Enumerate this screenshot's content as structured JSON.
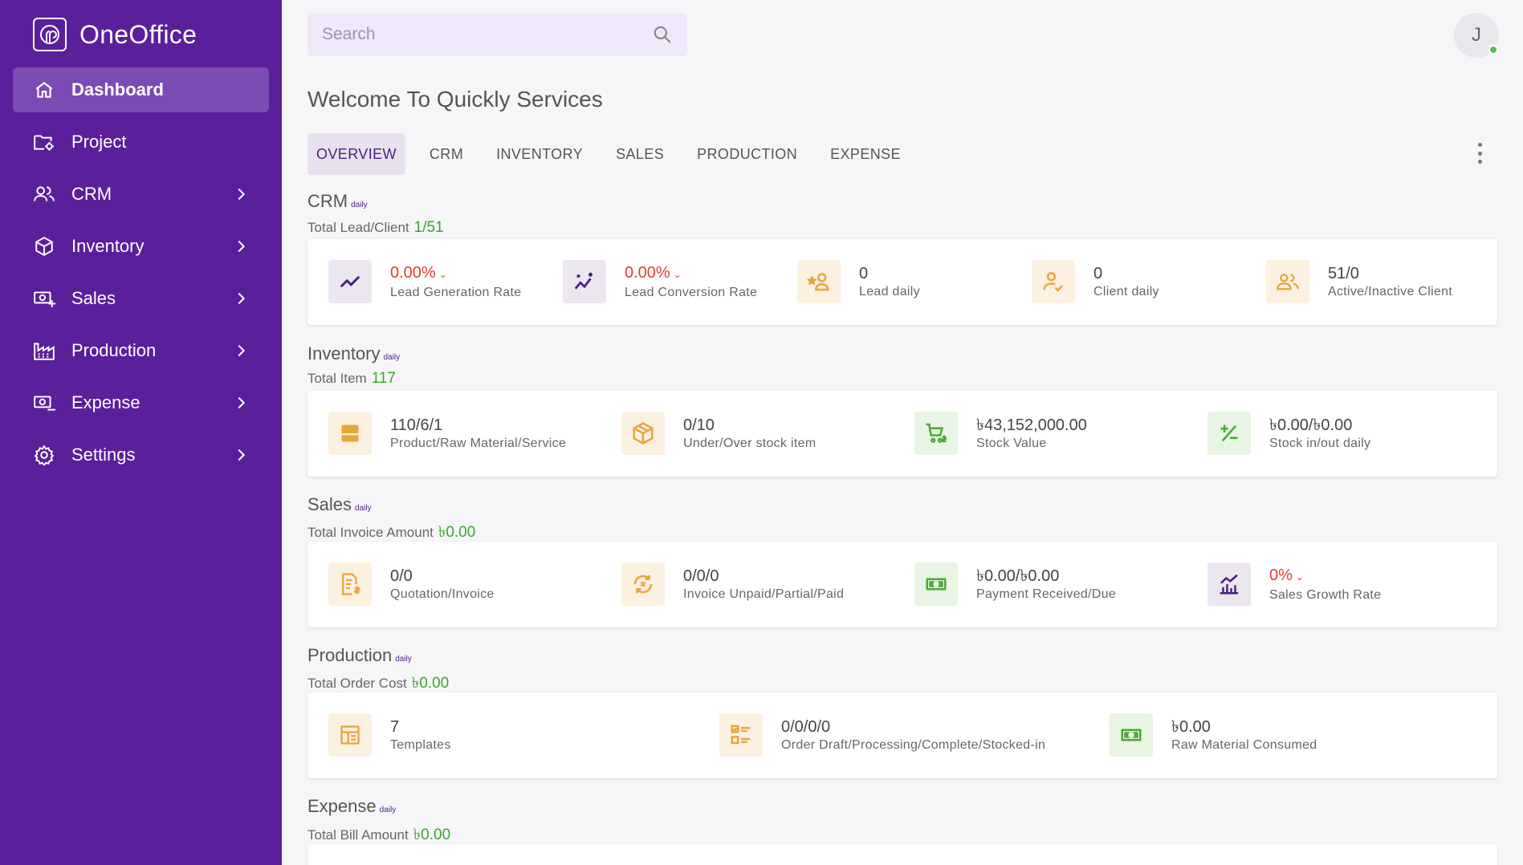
{
  "brand": {
    "name": "OneOffice"
  },
  "nav": [
    {
      "label": "Dashboard",
      "icon": "home-icon",
      "active": true
    },
    {
      "label": "Project",
      "icon": "folder-gear-icon"
    },
    {
      "label": "CRM",
      "icon": "users-icon"
    },
    {
      "label": "Inventory",
      "icon": "box-icon"
    },
    {
      "label": "Sales",
      "icon": "cash-plus-icon"
    },
    {
      "label": "Production",
      "icon": "factory-icon"
    },
    {
      "label": "Expense",
      "icon": "cash-minus-icon"
    },
    {
      "label": "Settings",
      "icon": "gear-icon"
    }
  ],
  "search": {
    "placeholder": "Search"
  },
  "user": {
    "initial": "J",
    "status": "online"
  },
  "welcome": "Welcome To Quickly Services",
  "tabs": [
    "OVERVIEW",
    "CRM",
    "INVENTORY",
    "SALES",
    "PRODUCTION",
    "EXPENSE"
  ],
  "daily_tag": "daily",
  "crm": {
    "title": "CRM",
    "total_label": "Total Lead/Client",
    "total_value": "1/51",
    "stats": [
      {
        "value": "0.00%",
        "label": "Lead Generation Rate",
        "icon": "trend-line-icon",
        "tone": "purple",
        "red": true
      },
      {
        "value": "0.00%",
        "label": "Lead Conversion Rate",
        "icon": "sparkle-trend-icon",
        "tone": "purple",
        "red": true
      },
      {
        "value": "0",
        "label": "Lead daily",
        "icon": "user-star-icon",
        "tone": "orange"
      },
      {
        "value": "0",
        "label": "Client daily",
        "icon": "user-check-icon",
        "tone": "orange"
      },
      {
        "value": "51/0",
        "label": "Active/Inactive Client",
        "icon": "users-icon",
        "tone": "orange"
      }
    ]
  },
  "inventory": {
    "title": "Inventory",
    "total_label": "Total Item",
    "total_value": "117",
    "stats": [
      {
        "value": "110/6/1",
        "label": "Product/Raw Material/Service",
        "icon": "archive-icon",
        "tone": "orange"
      },
      {
        "value": "0/10",
        "label": "Under/Over stock item",
        "icon": "package-icon",
        "tone": "orange"
      },
      {
        "value": "৳43,152,000.00",
        "label": "Stock Value",
        "icon": "cart-dollar-icon",
        "tone": "green"
      },
      {
        "value": "৳0.00/৳0.00",
        "label": "Stock in/out daily",
        "icon": "plus-minus-icon",
        "tone": "green"
      }
    ]
  },
  "sales": {
    "title": "Sales",
    "total_label": "Total Invoice Amount",
    "total_value": "৳0.00",
    "stats": [
      {
        "value": "0/0",
        "label": "Quotation/Invoice",
        "icon": "invoice-dollar-icon",
        "tone": "orange"
      },
      {
        "value": "0/0/0",
        "label": "Invoice Unpaid/Partial/Paid",
        "icon": "refresh-cash-icon",
        "tone": "orange"
      },
      {
        "value": "৳0.00/৳0.00",
        "label": "Payment Received/Due",
        "icon": "banknote-icon",
        "tone": "green"
      },
      {
        "value": "0%",
        "label": "Sales Growth Rate",
        "icon": "bar-growth-icon",
        "tone": "purple",
        "red": true
      }
    ]
  },
  "production": {
    "title": "Production",
    "total_label": "Total Order Cost",
    "total_value": "৳0.00",
    "stats": [
      {
        "value": "7",
        "label": "Templates",
        "icon": "template-icon",
        "tone": "orange"
      },
      {
        "value": "0/0/0/0",
        "label": "Order Draft/Processing/Complete/Stocked-in",
        "icon": "checklist-icon",
        "tone": "orange"
      },
      {
        "value": "৳0.00",
        "label": "Raw Material Consumed",
        "icon": "banknote-icon",
        "tone": "green"
      }
    ]
  },
  "expense": {
    "title": "Expense",
    "total_label": "Total Bill Amount",
    "total_value": "৳0.00"
  },
  "colors": {
    "sidebar": "#5b1f9c",
    "active": "#7b4bb4",
    "accent_green": "#3aa52a",
    "accent_red": "#e53935",
    "orange_icon": "#e8a53a",
    "purple_icon": "#4b1f82",
    "green_icon": "#4aa83a"
  }
}
